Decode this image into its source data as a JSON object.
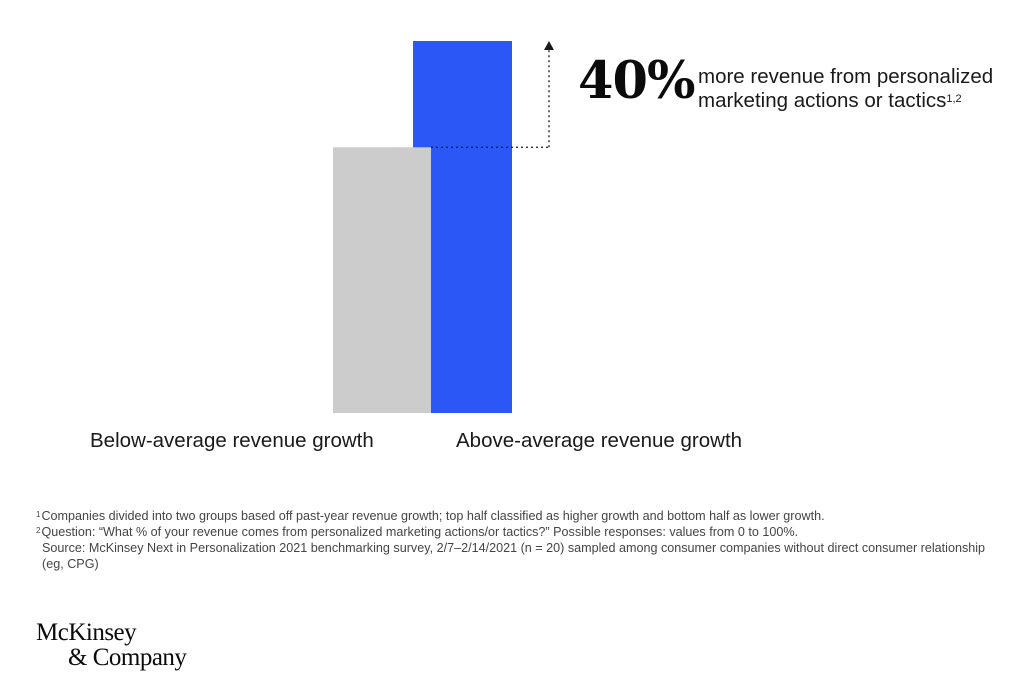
{
  "chart_data": {
    "type": "bar",
    "categories": [
      "Below-average revenue growth",
      "Above-average revenue growth"
    ],
    "values": [
      100,
      140
    ],
    "ylim": [
      0,
      140
    ],
    "colors": [
      "#cccccc",
      "#2a57f5"
    ],
    "grid": false,
    "legend": "none",
    "annotation": {
      "value": "40%",
      "text": "more revenue from personalized marketing actions or tactics",
      "superscript": "1,2",
      "arrow_style": "dotted",
      "arrow_color": "#1a1a1a"
    }
  },
  "footnotes": [
    {
      "marker": "1",
      "text": "Companies divided into two groups based off past-year revenue growth; top half classified as higher growth and bottom half as lower growth."
    },
    {
      "marker": "2",
      "text": "Question: “What % of your revenue comes from personalized marketing actions/or tactics?” Possible responses: values from 0 to 100%."
    }
  ],
  "source": "Source: McKinsey Next in Personalization 2021 benchmarking survey, 2/7–2/14/2021 (n = 20) sampled among consumer companies without direct consumer relationship (eg, CPG)",
  "logo": {
    "line1": "McKinsey",
    "line2": "& Company"
  }
}
